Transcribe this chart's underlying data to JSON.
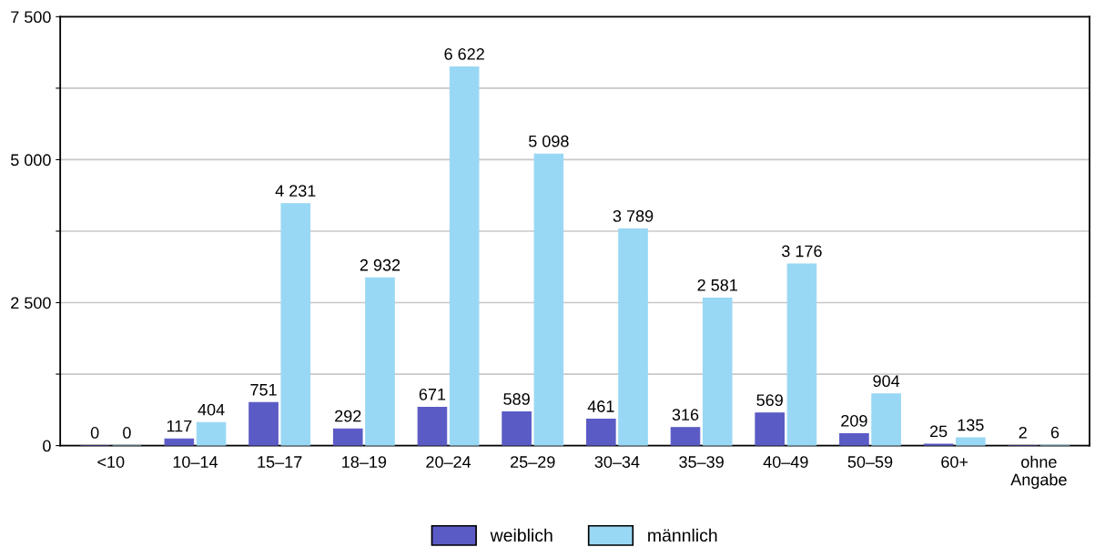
{
  "chart_data": {
    "type": "bar",
    "categories": [
      "<10",
      "10–14",
      "15–17",
      "18–19",
      "20–24",
      "25–29",
      "30–34",
      "35–39",
      "40–49",
      "50–59",
      "60+",
      "ohne\nAngabe"
    ],
    "series": [
      {
        "name": "weiblich",
        "color": "#5b5bc6",
        "values": [
          0,
          117,
          751,
          292,
          671,
          589,
          461,
          316,
          569,
          209,
          25,
          2
        ],
        "value_labels": [
          "0",
          "117",
          "751",
          "292",
          "671",
          "589",
          "461",
          "316",
          "569",
          "209",
          "25",
          "2"
        ]
      },
      {
        "name": "männlich",
        "color": "#99d8f4",
        "values": [
          0,
          404,
          4231,
          2932,
          6622,
          5098,
          3789,
          2581,
          3176,
          904,
          135,
          6
        ],
        "value_labels": [
          "0",
          "404",
          "4 231",
          "2 932",
          "6 622",
          "5 098",
          "3 789",
          "2 581",
          "3 176",
          "904",
          "135",
          "6"
        ]
      }
    ],
    "ylim": [
      0,
      7500
    ],
    "yticks": [
      0,
      {
        "value": 1250,
        "label": null
      },
      {
        "value": 2500,
        "label": "2 500"
      },
      {
        "value": 3750,
        "label": null
      },
      {
        "value": 5000,
        "label": "5 000"
      },
      {
        "value": 6250,
        "label": null
      },
      {
        "value": 7500,
        "label": "7 500"
      }
    ],
    "grid": "y",
    "legend": "bottom"
  }
}
